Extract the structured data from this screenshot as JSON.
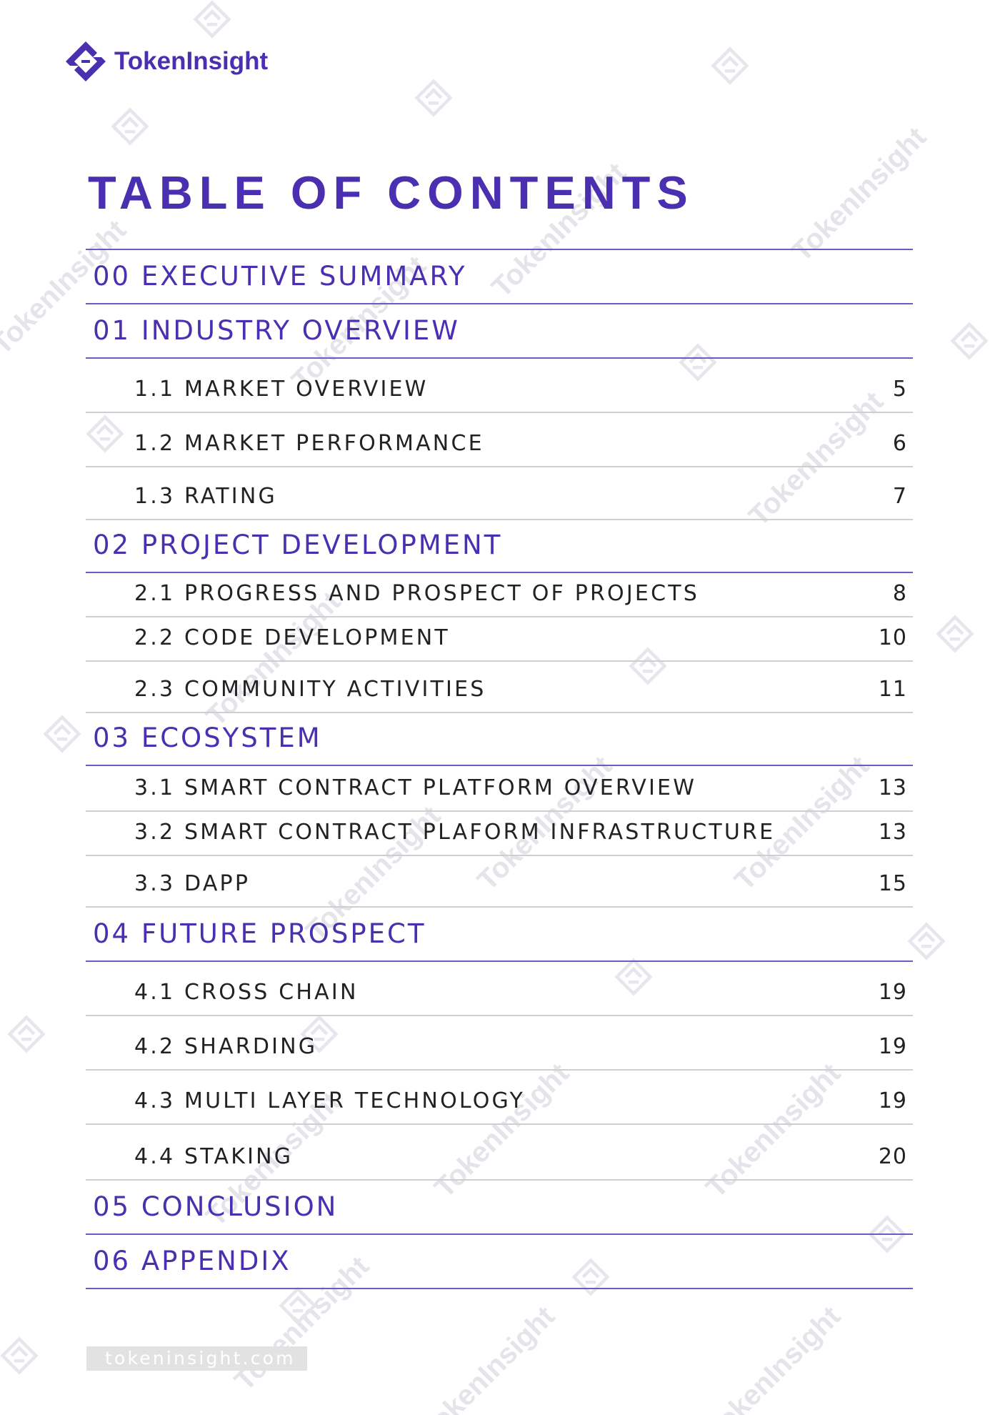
{
  "brand": {
    "name": "TokenInsight",
    "color": "#4a2fb0",
    "logo_icon": "tokeninsight-diamond-logo"
  },
  "watermark_text": "TokenInsight",
  "title": "TABLE OF CONTENTS",
  "toc": [
    {
      "label": "00 EXECUTIVE SUMMARY",
      "page": "",
      "level": 1
    },
    {
      "label": "01 INDUSTRY OVERVIEW",
      "page": "",
      "level": 1
    },
    {
      "label": "1.1 MARKET OVERVIEW",
      "page": "5",
      "level": 2
    },
    {
      "label": "1.2 MARKET PERFORMANCE",
      "page": "6",
      "level": 2
    },
    {
      "label": "1.3 RATING",
      "page": "7",
      "level": 2
    },
    {
      "label": "02 PROJECT DEVELOPMENT",
      "page": "",
      "level": 1
    },
    {
      "label": "2.1 PROGRESS AND PROSPECT OF PROJECTS",
      "page": "8",
      "level": 2
    },
    {
      "label": "2.2 CODE DEVELOPMENT",
      "page": "10",
      "level": 2
    },
    {
      "label": "2.3 COMMUNITY ACTIVITIES",
      "page": "11",
      "level": 2
    },
    {
      "label": "03 ECOSYSTEM",
      "page": "",
      "level": 1
    },
    {
      "label": "3.1 SMART CONTRACT PLATFORM OVERVIEW",
      "page": "13",
      "level": 2
    },
    {
      "label": "3.2 SMART CONTRACT PLAFORM INFRASTRUCTURE",
      "page": "13",
      "level": 2
    },
    {
      "label": "3.3 DAPP",
      "page": "15",
      "level": 2
    },
    {
      "label": "04 FUTURE PROSPECT",
      "page": "",
      "level": 1
    },
    {
      "label": "4.1 CROSS CHAIN",
      "page": "19",
      "level": 2
    },
    {
      "label": "4.2 SHARDING",
      "page": "19",
      "level": 2
    },
    {
      "label": "4.3 MULTI LAYER TECHNOLOGY",
      "page": "19",
      "level": 2
    },
    {
      "label": "4.4 STAKING",
      "page": "20",
      "level": 2
    },
    {
      "label": "05 CONCLUSION",
      "page": "",
      "level": 1
    },
    {
      "label": "06 APPENDIX",
      "page": "",
      "level": 1
    }
  ],
  "footer": {
    "url": "tokeninsight.com"
  }
}
